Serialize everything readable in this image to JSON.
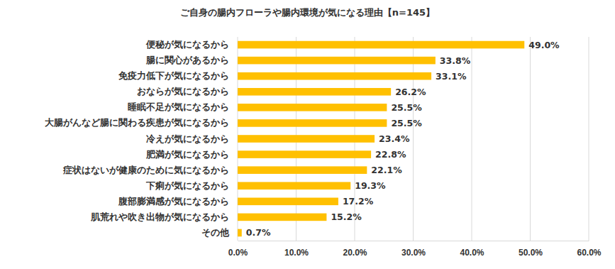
{
  "chart_data": {
    "type": "bar",
    "orientation": "horizontal",
    "title": "ご自身の腸内フローラや腸内環境が気になる理由【n=145】",
    "categories": [
      "便秘が気になるから",
      "腸に関心があるから",
      "免疫力低下が気になるから",
      "おならが気になるから",
      "睡眠不足が気になるから",
      "大腸がんなど腸に関わる疾患が気になるから",
      "冷えが気になるから",
      "肥満が気になるから",
      "症状はないが健康のために気になるから",
      "下痢が気になるから",
      "腹部膨満感が気になるから",
      "肌荒れや吹き出物が気になるから",
      "その他"
    ],
    "values": [
      49.0,
      33.8,
      33.1,
      26.2,
      25.5,
      25.5,
      23.4,
      22.8,
      22.1,
      19.3,
      17.2,
      15.2,
      0.7
    ],
    "value_labels": [
      "49.0%",
      "33.8%",
      "33.1%",
      "26.2%",
      "25.5%",
      "25.5%",
      "23.4%",
      "22.8%",
      "22.1%",
      "19.3%",
      "17.2%",
      "15.2%",
      "0.7%"
    ],
    "data_labels": true,
    "color": "#ffc000",
    "xlim": [
      0,
      60
    ],
    "xticks": [
      {
        "value": 0,
        "label": "0.0%"
      },
      {
        "value": 10,
        "label": "10.0%"
      },
      {
        "value": 20,
        "label": "20.0%"
      },
      {
        "value": 30,
        "label": "30.0%"
      },
      {
        "value": 40,
        "label": "40.0%"
      },
      {
        "value": 50,
        "label": "50.0%"
      },
      {
        "value": 60,
        "label": "60.0%"
      }
    ],
    "grid": true
  }
}
